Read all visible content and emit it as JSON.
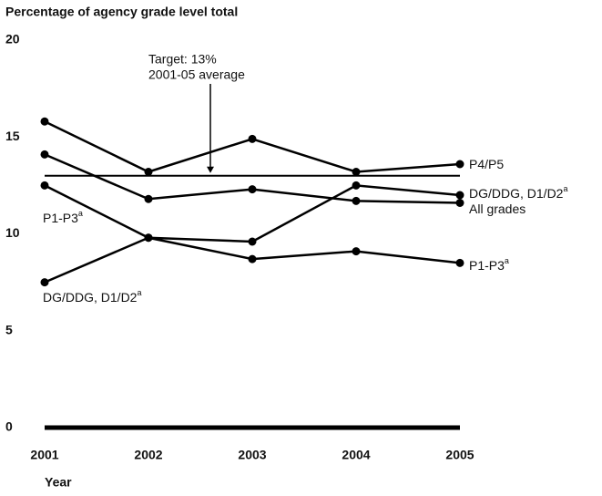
{
  "chart_data": {
    "type": "line",
    "y_axis_label": "Percentage of agency grade level total",
    "x_axis_label": "Year",
    "x": [
      2001,
      2002,
      2003,
      2004,
      2005
    ],
    "xlim": [
      2001,
      2005
    ],
    "xticks": [
      2001,
      2002,
      2003,
      2004,
      2005
    ],
    "ylim": [
      0,
      20
    ],
    "yticks": [
      0,
      5,
      10,
      15,
      20
    ],
    "grid": false,
    "target": {
      "value": 13,
      "label": [
        "Target: 13%",
        "2001-05 average"
      ]
    },
    "series": [
      {
        "name": "P4/P5",
        "color": "#000000",
        "values": [
          15.8,
          13.2,
          14.9,
          13.2,
          13.6
        ]
      },
      {
        "name": "DG/DDG, D1/D2",
        "superscript": "a",
        "color": "#000000",
        "values": [
          7.5,
          9.8,
          9.6,
          12.5,
          12.0
        ]
      },
      {
        "name": "All grades",
        "color": "#000000",
        "values": [
          14.1,
          11.8,
          12.3,
          11.7,
          11.6
        ]
      },
      {
        "name": "P1-P3",
        "superscript": "a",
        "color": "#000000",
        "values": [
          12.5,
          9.8,
          8.7,
          9.1,
          8.5
        ]
      }
    ]
  }
}
